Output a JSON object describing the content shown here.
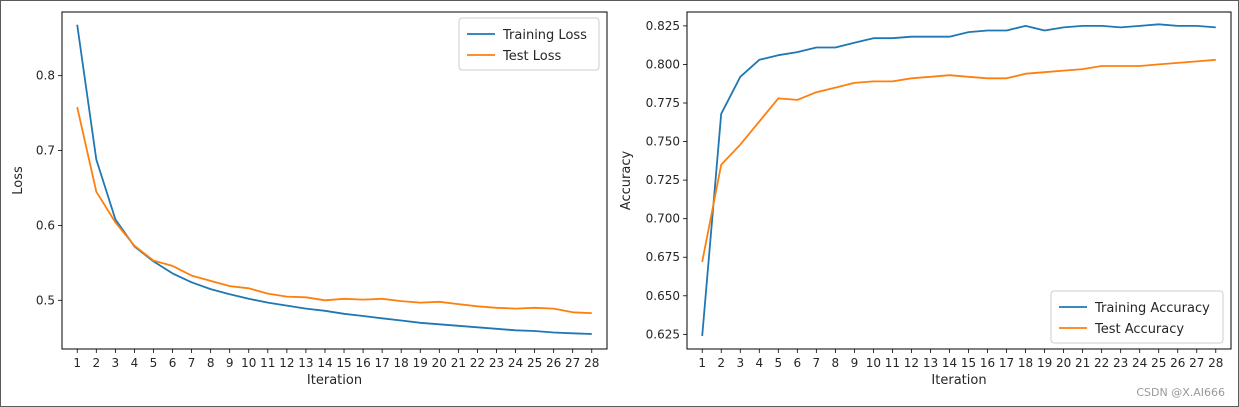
{
  "watermark": "CSDN @X.AI666",
  "chart_data": [
    {
      "type": "line",
      "title": "",
      "xlabel": "Iteration",
      "ylabel": "Loss",
      "x": [
        1,
        2,
        3,
        4,
        5,
        6,
        7,
        8,
        9,
        10,
        11,
        12,
        13,
        14,
        15,
        16,
        17,
        18,
        19,
        20,
        21,
        22,
        23,
        24,
        25,
        26,
        27,
        28
      ],
      "xlim": [
        0.2,
        28.8
      ],
      "ylim": [
        0.435,
        0.885
      ],
      "yticks": [
        0.5,
        0.6,
        0.7,
        0.8
      ],
      "ytick_labels": [
        "0.5",
        "0.6",
        "0.7",
        "0.8"
      ],
      "grid": false,
      "legend_position": "upper right",
      "series": [
        {
          "name": "Training Loss",
          "color": "#1f77b4",
          "values": [
            0.868,
            0.688,
            0.608,
            0.572,
            0.552,
            0.536,
            0.524,
            0.515,
            0.508,
            0.502,
            0.497,
            0.493,
            0.489,
            0.486,
            0.482,
            0.479,
            0.476,
            0.473,
            0.47,
            0.468,
            0.466,
            0.464,
            0.462,
            0.46,
            0.459,
            0.457,
            0.456,
            0.455
          ]
        },
        {
          "name": "Test Loss",
          "color": "#ff7f0e",
          "values": [
            0.758,
            0.645,
            0.604,
            0.573,
            0.553,
            0.546,
            0.533,
            0.526,
            0.519,
            0.516,
            0.509,
            0.505,
            0.504,
            0.5,
            0.502,
            0.501,
            0.502,
            0.499,
            0.497,
            0.498,
            0.495,
            0.492,
            0.49,
            0.489,
            0.49,
            0.489,
            0.484,
            0.483
          ]
        }
      ]
    },
    {
      "type": "line",
      "title": "",
      "xlabel": "Iteration",
      "ylabel": "Accuracy",
      "x": [
        1,
        2,
        3,
        4,
        5,
        6,
        7,
        8,
        9,
        10,
        11,
        12,
        13,
        14,
        15,
        16,
        17,
        18,
        19,
        20,
        21,
        22,
        23,
        24,
        25,
        26,
        27,
        28
      ],
      "xlim": [
        0.2,
        28.8
      ],
      "ylim": [
        0.6155,
        0.834
      ],
      "yticks": [
        0.625,
        0.65,
        0.675,
        0.7,
        0.725,
        0.75,
        0.775,
        0.8,
        0.825
      ],
      "ytick_labels": [
        "0.625",
        "0.650",
        "0.675",
        "0.700",
        "0.725",
        "0.750",
        "0.775",
        "0.800",
        "0.825"
      ],
      "grid": false,
      "legend_position": "lower right",
      "series": [
        {
          "name": "Training Accuracy",
          "color": "#1f77b4",
          "values": [
            0.624,
            0.768,
            0.792,
            0.803,
            0.806,
            0.808,
            0.811,
            0.811,
            0.814,
            0.817,
            0.817,
            0.818,
            0.818,
            0.818,
            0.821,
            0.822,
            0.822,
            0.825,
            0.822,
            0.824,
            0.825,
            0.825,
            0.824,
            0.825,
            0.826,
            0.825,
            0.825,
            0.824
          ]
        },
        {
          "name": "Test Accuracy",
          "color": "#ff7f0e",
          "values": [
            0.672,
            0.735,
            0.748,
            0.763,
            0.778,
            0.777,
            0.782,
            0.785,
            0.788,
            0.789,
            0.789,
            0.791,
            0.792,
            0.793,
            0.792,
            0.791,
            0.791,
            0.794,
            0.795,
            0.796,
            0.797,
            0.799,
            0.799,
            0.799,
            0.8,
            0.801,
            0.802,
            0.803
          ]
        }
      ]
    }
  ]
}
